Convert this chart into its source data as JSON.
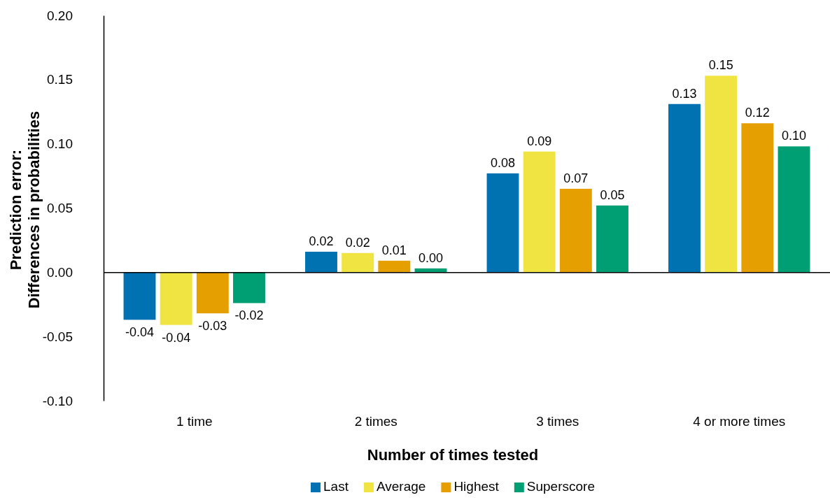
{
  "chart_data": {
    "type": "bar",
    "xlabel": "Number of times tested",
    "ylabel": "Prediction error:\nDifferences in probabilities",
    "categories": [
      "1 time",
      "2 times",
      "3 times",
      "4 or more times"
    ],
    "series": [
      {
        "name": "Last",
        "color": "#0072b2",
        "values": [
          -0.037,
          0.016,
          0.077,
          0.131
        ],
        "value_labels": [
          "-0.04",
          "0.02",
          "0.08",
          "0.13"
        ]
      },
      {
        "name": "Average",
        "color": "#f0e442",
        "values": [
          -0.041,
          0.015,
          0.094,
          0.153
        ],
        "value_labels": [
          "-0.04",
          "0.02",
          "0.09",
          "0.15"
        ]
      },
      {
        "name": "Highest",
        "color": "#e69f00",
        "values": [
          -0.032,
          0.009,
          0.065,
          0.116
        ],
        "value_labels": [
          "-0.03",
          "0.01",
          "0.07",
          "0.12"
        ]
      },
      {
        "name": "Superscore",
        "color": "#009e73",
        "values": [
          -0.024,
          0.003,
          0.052,
          0.098
        ],
        "value_labels": [
          "-0.02",
          "0.00",
          "0.05",
          "0.10"
        ]
      }
    ],
    "ylim": [
      -0.1,
      0.2
    ],
    "yticks": [
      {
        "value": -0.1,
        "label": "-0.10"
      },
      {
        "value": -0.05,
        "label": "-0.05"
      },
      {
        "value": 0,
        "label": "0.00"
      },
      {
        "value": 0.05,
        "label": "0.05"
      },
      {
        "value": 0.1,
        "label": "0.10"
      },
      {
        "value": 0.15,
        "label": "0.15"
      },
      {
        "value": 0.2,
        "label": "0.20"
      }
    ],
    "legend": "bottom"
  }
}
